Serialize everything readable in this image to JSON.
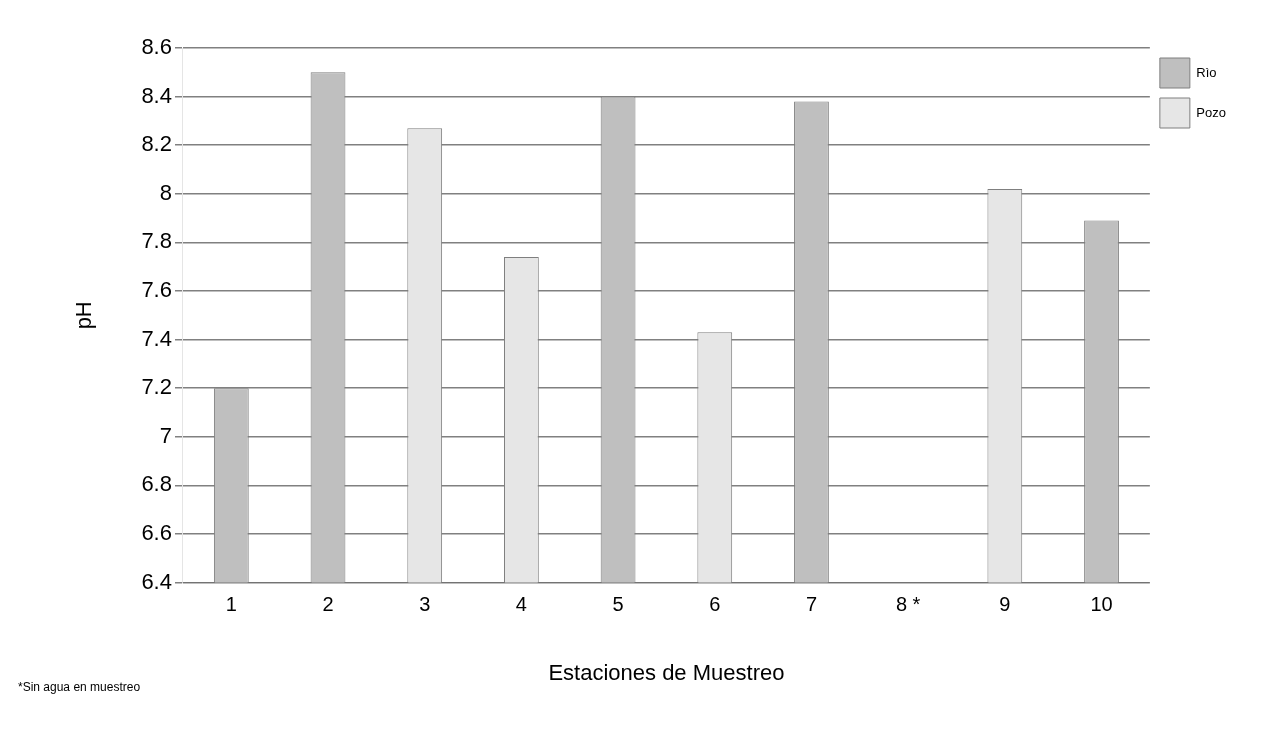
{
  "chart_data": {
    "type": "bar",
    "xlabel": "Estaciones de Muestreo",
    "ylabel": "pH",
    "categories": [
      "1",
      "2",
      "3",
      "4",
      "5",
      "6",
      "7",
      "8 *",
      "9",
      "10"
    ],
    "series": [
      {
        "name": "Rìo",
        "color": "#bfbfbf",
        "values": [
          7.2,
          8.5,
          null,
          null,
          8.4,
          null,
          8.38,
          null,
          null,
          7.89
        ]
      },
      {
        "name": "Pozo",
        "color": "#e6e6e6",
        "values": [
          null,
          null,
          8.27,
          7.74,
          null,
          7.43,
          null,
          null,
          8.02,
          null
        ]
      }
    ],
    "ylim": [
      6.4,
      8.6
    ],
    "yticks": [
      6.4,
      6.6,
      6.8,
      7,
      7.2,
      7.4,
      7.6,
      7.8,
      8,
      8.2,
      8.4,
      8.6
    ],
    "grid": "y",
    "legend": "right",
    "annotations": [
      "*Sin agua en muestreo"
    ]
  }
}
